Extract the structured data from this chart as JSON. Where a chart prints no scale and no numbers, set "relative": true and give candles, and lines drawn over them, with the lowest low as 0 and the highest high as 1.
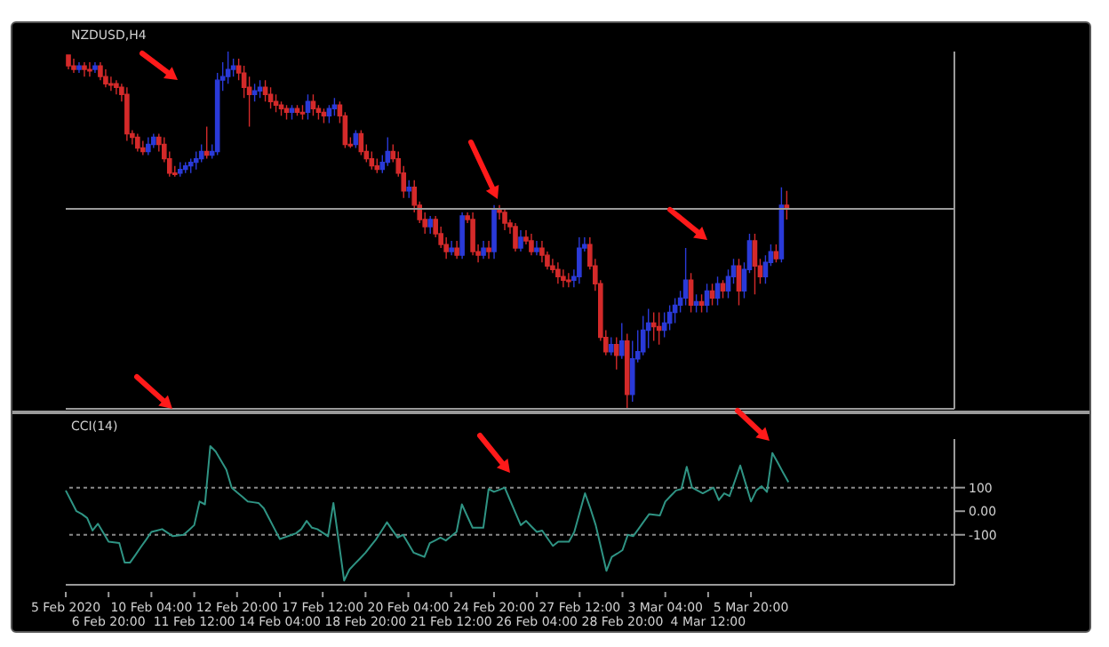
{
  "chart_data": [
    {
      "type": "candlestick",
      "title": "NZDUSD,H4",
      "relative": true,
      "grid": false,
      "categories": [
        null,
        null,
        null,
        null,
        null,
        null,
        null,
        null,
        null,
        null,
        null,
        null,
        null,
        null,
        null,
        null,
        null,
        null,
        null,
        null,
        null,
        null,
        null,
        null,
        null,
        null,
        null,
        null,
        null,
        null,
        null,
        null,
        null,
        null,
        null,
        null,
        null,
        null,
        null,
        null,
        null,
        null,
        null,
        null,
        null,
        null,
        null,
        null,
        null,
        null,
        null,
        null,
        null,
        null,
        null,
        null,
        null,
        null,
        null,
        null,
        null,
        null,
        null,
        null,
        null,
        null,
        null,
        null,
        null,
        null,
        null,
        null,
        null,
        null,
        null,
        null,
        null,
        null,
        null,
        null,
        null,
        null,
        null,
        null,
        null,
        null,
        null,
        null,
        null,
        null,
        null,
        null,
        null,
        null,
        null,
        null,
        null,
        null,
        null,
        null,
        null,
        null,
        null,
        null,
        null,
        null,
        null,
        null,
        null,
        null,
        null,
        null,
        null,
        null,
        null,
        null,
        null,
        null,
        null,
        null,
        null,
        null,
        null,
        null,
        null,
        null,
        null,
        null,
        null,
        null,
        null,
        null,
        null,
        null,
        null,
        null,
        null,
        null,
        null,
        null,
        null,
        null,
        null,
        null,
        null,
        null,
        null,
        null,
        null,
        null,
        null,
        null,
        null,
        null,
        null,
        null,
        null,
        null,
        null,
        null,
        null,
        null,
        null,
        null,
        null,
        null,
        null
      ],
      "ohlc": [
        [
          0.99,
          0.99,
          0.95,
          0.96
        ],
        [
          0.96,
          0.98,
          0.94,
          0.95
        ],
        [
          0.95,
          0.97,
          0.94,
          0.96
        ],
        [
          0.96,
          0.97,
          0.93,
          0.95
        ],
        [
          0.95,
          0.97,
          0.93,
          0.95
        ],
        [
          0.95,
          0.97,
          0.94,
          0.96
        ],
        [
          0.96,
          0.97,
          0.92,
          0.93
        ],
        [
          0.93,
          0.95,
          0.9,
          0.91
        ],
        [
          0.91,
          0.93,
          0.89,
          0.91
        ],
        [
          0.91,
          0.92,
          0.88,
          0.9
        ],
        [
          0.9,
          0.91,
          0.86,
          0.88
        ],
        [
          0.88,
          0.9,
          0.75,
          0.77
        ],
        [
          0.77,
          0.78,
          0.74,
          0.76
        ],
        [
          0.76,
          0.77,
          0.72,
          0.73
        ],
        [
          0.73,
          0.75,
          0.71,
          0.72
        ],
        [
          0.72,
          0.76,
          0.71,
          0.74
        ],
        [
          0.74,
          0.77,
          0.73,
          0.76
        ],
        [
          0.76,
          0.77,
          0.72,
          0.74
        ],
        [
          0.74,
          0.76,
          0.69,
          0.7
        ],
        [
          0.7,
          0.72,
          0.65,
          0.66
        ],
        [
          0.66,
          0.68,
          0.65,
          0.66
        ],
        [
          0.66,
          0.69,
          0.65,
          0.67
        ],
        [
          0.67,
          0.69,
          0.66,
          0.68
        ],
        [
          0.68,
          0.7,
          0.66,
          0.69
        ],
        [
          0.69,
          0.72,
          0.67,
          0.7
        ],
        [
          0.7,
          0.74,
          0.69,
          0.72
        ],
        [
          0.72,
          0.79,
          0.7,
          0.71
        ],
        [
          0.71,
          0.74,
          0.7,
          0.72
        ],
        [
          0.72,
          0.94,
          0.71,
          0.92
        ],
        [
          0.92,
          0.97,
          0.89,
          0.93
        ],
        [
          0.93,
          1.0,
          0.91,
          0.95
        ],
        [
          0.95,
          0.98,
          0.93,
          0.96
        ],
        [
          0.96,
          0.98,
          0.92,
          0.94
        ],
        [
          0.94,
          0.96,
          0.87,
          0.9
        ],
        [
          0.9,
          0.93,
          0.79,
          0.88
        ],
        [
          0.88,
          0.91,
          0.86,
          0.89
        ],
        [
          0.89,
          0.92,
          0.87,
          0.9
        ],
        [
          0.9,
          0.92,
          0.86,
          0.88
        ],
        [
          0.88,
          0.9,
          0.84,
          0.86
        ],
        [
          0.86,
          0.88,
          0.83,
          0.85
        ],
        [
          0.85,
          0.86,
          0.82,
          0.84
        ],
        [
          0.84,
          0.85,
          0.81,
          0.83
        ],
        [
          0.83,
          0.85,
          0.81,
          0.84
        ],
        [
          0.84,
          0.85,
          0.82,
          0.83
        ],
        [
          0.83,
          0.85,
          0.81,
          0.83
        ],
        [
          0.83,
          0.88,
          0.81,
          0.86
        ],
        [
          0.86,
          0.88,
          0.82,
          0.84
        ],
        [
          0.84,
          0.85,
          0.81,
          0.83
        ],
        [
          0.83,
          0.84,
          0.8,
          0.82
        ],
        [
          0.82,
          0.85,
          0.8,
          0.84
        ],
        [
          0.84,
          0.87,
          0.82,
          0.85
        ],
        [
          0.85,
          0.86,
          0.8,
          0.82
        ],
        [
          0.82,
          0.83,
          0.73,
          0.74
        ],
        [
          0.74,
          0.76,
          0.73,
          0.74
        ],
        [
          0.74,
          0.78,
          0.73,
          0.77
        ],
        [
          0.77,
          0.78,
          0.71,
          0.72
        ],
        [
          0.72,
          0.74,
          0.69,
          0.7
        ],
        [
          0.7,
          0.72,
          0.67,
          0.68
        ],
        [
          0.68,
          0.7,
          0.66,
          0.67
        ],
        [
          0.67,
          0.71,
          0.66,
          0.69
        ],
        [
          0.69,
          0.76,
          0.68,
          0.72
        ],
        [
          0.72,
          0.74,
          0.69,
          0.7
        ],
        [
          0.7,
          0.72,
          0.65,
          0.66
        ],
        [
          0.66,
          0.68,
          0.59,
          0.61
        ],
        [
          0.61,
          0.64,
          0.59,
          0.62
        ],
        [
          0.62,
          0.64,
          0.55,
          0.57
        ],
        [
          0.57,
          0.58,
          0.52,
          0.53
        ],
        [
          0.53,
          0.55,
          0.49,
          0.51
        ],
        [
          0.51,
          0.54,
          0.49,
          0.53
        ],
        [
          0.53,
          0.54,
          0.48,
          0.49
        ],
        [
          0.49,
          0.51,
          0.45,
          0.46
        ],
        [
          0.46,
          0.48,
          0.42,
          0.44
        ],
        [
          0.44,
          0.47,
          0.43,
          0.45
        ],
        [
          0.45,
          0.47,
          0.42,
          0.43
        ],
        [
          0.43,
          0.55,
          0.42,
          0.54
        ],
        [
          0.54,
          0.55,
          0.52,
          0.53
        ],
        [
          0.53,
          0.55,
          0.43,
          0.44
        ],
        [
          0.44,
          0.46,
          0.41,
          0.43
        ],
        [
          0.43,
          0.47,
          0.42,
          0.45
        ],
        [
          0.45,
          0.47,
          0.42,
          0.44
        ],
        [
          0.44,
          0.57,
          0.42,
          0.56
        ],
        [
          0.56,
          0.57,
          0.53,
          0.55
        ],
        [
          0.55,
          0.56,
          0.5,
          0.52
        ],
        [
          0.52,
          0.53,
          0.49,
          0.51
        ],
        [
          0.51,
          0.52,
          0.44,
          0.45
        ],
        [
          0.45,
          0.5,
          0.44,
          0.48
        ],
        [
          0.48,
          0.5,
          0.46,
          0.47
        ],
        [
          0.47,
          0.49,
          0.43,
          0.44
        ],
        [
          0.44,
          0.47,
          0.43,
          0.45
        ],
        [
          0.45,
          0.47,
          0.41,
          0.43
        ],
        [
          0.43,
          0.44,
          0.39,
          0.4
        ],
        [
          0.4,
          0.42,
          0.38,
          0.39
        ],
        [
          0.39,
          0.41,
          0.35,
          0.37
        ],
        [
          0.37,
          0.39,
          0.34,
          0.36
        ],
        [
          0.36,
          0.38,
          0.34,
          0.36
        ],
        [
          0.36,
          0.39,
          0.34,
          0.37
        ],
        [
          0.37,
          0.48,
          0.35,
          0.45
        ],
        [
          0.45,
          0.48,
          0.44,
          0.46
        ],
        [
          0.46,
          0.48,
          0.39,
          0.4
        ],
        [
          0.4,
          0.42,
          0.33,
          0.35
        ],
        [
          0.35,
          0.36,
          0.19,
          0.2
        ],
        [
          0.2,
          0.22,
          0.15,
          0.16
        ],
        [
          0.16,
          0.2,
          0.15,
          0.18
        ],
        [
          0.18,
          0.2,
          0.11,
          0.15
        ],
        [
          0.15,
          0.24,
          0.14,
          0.19
        ],
        [
          0.19,
          0.21,
          0.0,
          0.04
        ],
        [
          0.04,
          0.19,
          0.02,
          0.14
        ],
        [
          0.14,
          0.22,
          0.13,
          0.16
        ],
        [
          0.16,
          0.26,
          0.15,
          0.22
        ],
        [
          0.22,
          0.28,
          0.17,
          0.24
        ],
        [
          0.24,
          0.27,
          0.19,
          0.23
        ],
        [
          0.23,
          0.27,
          0.18,
          0.22
        ],
        [
          0.22,
          0.27,
          0.2,
          0.24
        ],
        [
          0.24,
          0.29,
          0.22,
          0.27
        ],
        [
          0.27,
          0.31,
          0.24,
          0.29
        ],
        [
          0.29,
          0.33,
          0.27,
          0.31
        ],
        [
          0.31,
          0.45,
          0.29,
          0.36
        ],
        [
          0.36,
          0.38,
          0.27,
          0.29
        ],
        [
          0.29,
          0.32,
          0.27,
          0.3
        ],
        [
          0.3,
          0.32,
          0.27,
          0.29
        ],
        [
          0.29,
          0.35,
          0.27,
          0.33
        ],
        [
          0.33,
          0.35,
          0.29,
          0.31
        ],
        [
          0.31,
          0.37,
          0.29,
          0.35
        ],
        [
          0.35,
          0.36,
          0.31,
          0.33
        ],
        [
          0.33,
          0.39,
          0.31,
          0.37
        ],
        [
          0.37,
          0.42,
          0.35,
          0.4
        ],
        [
          0.4,
          0.42,
          0.29,
          0.33
        ],
        [
          0.33,
          0.41,
          0.31,
          0.39
        ],
        [
          0.39,
          0.49,
          0.38,
          0.47
        ],
        [
          0.47,
          0.49,
          0.32,
          0.4
        ],
        [
          0.4,
          0.42,
          0.35,
          0.37
        ],
        [
          0.37,
          0.43,
          0.35,
          0.41
        ],
        [
          0.41,
          0.46,
          0.4,
          0.44
        ],
        [
          0.44,
          0.46,
          0.41,
          0.42
        ],
        [
          0.42,
          0.62,
          0.41,
          0.57
        ],
        [
          0.57,
          0.61,
          0.53,
          0.56
        ],
        null,
        null,
        null,
        null,
        null,
        null,
        null,
        null,
        null,
        null,
        null,
        null,
        null,
        null,
        null,
        null,
        null,
        null,
        null,
        null,
        null,
        null,
        null,
        null,
        null,
        null,
        null,
        null,
        null,
        null,
        null
      ],
      "colors": [
        "#d42a2a",
        "#d42a2a",
        "#2a3ad8",
        "#d42a2a",
        "#d42a2a",
        "#2a3ad8",
        "#d42a2a",
        "#d42a2a",
        "#d42a2a",
        "#d42a2a",
        "#d42a2a",
        "#d42a2a",
        "#d42a2a",
        "#d42a2a",
        "#d42a2a",
        "#2a3ad8",
        "#2a3ad8",
        "#d42a2a",
        "#d42a2a",
        "#d42a2a",
        "#d42a2a",
        "#2a3ad8",
        "#2a3ad8",
        "#2a3ad8",
        "#2a3ad8",
        "#2a3ad8",
        "#d42a2a",
        "#2a3ad8",
        "#2a3ad8",
        "#2a3ad8",
        "#2a3ad8",
        "#2a3ad8",
        "#d42a2a",
        "#d42a2a",
        "#d42a2a",
        "#2a3ad8",
        "#2a3ad8",
        "#d42a2a",
        "#d42a2a",
        "#d42a2a",
        "#d42a2a",
        "#d42a2a",
        "#2a3ad8",
        "#d42a2a",
        "#d42a2a",
        "#2a3ad8",
        "#d42a2a",
        "#d42a2a",
        "#d42a2a",
        "#2a3ad8",
        "#2a3ad8",
        "#d42a2a",
        "#d42a2a",
        "#d42a2a",
        "#2a3ad8",
        "#d42a2a",
        "#d42a2a",
        "#d42a2a",
        "#d42a2a",
        "#2a3ad8",
        "#2a3ad8",
        "#d42a2a",
        "#d42a2a",
        "#d42a2a",
        "#2a3ad8",
        "#d42a2a",
        "#d42a2a",
        "#d42a2a",
        "#2a3ad8",
        "#d42a2a",
        "#d42a2a",
        "#d42a2a",
        "#2a3ad8",
        "#d42a2a",
        "#2a3ad8",
        "#d42a2a",
        "#d42a2a",
        "#d42a2a",
        "#2a3ad8",
        "#d42a2a",
        "#2a3ad8",
        "#d42a2a",
        "#d42a2a",
        "#d42a2a",
        "#d42a2a",
        "#2a3ad8",
        "#d42a2a",
        "#d42a2a",
        "#2a3ad8",
        "#d42a2a",
        "#d42a2a",
        "#d42a2a",
        "#d42a2a",
        "#d42a2a",
        "#d42a2a",
        "#2a3ad8",
        "#2a3ad8",
        "#2a3ad8",
        "#d42a2a",
        "#d42a2a",
        "#d42a2a",
        "#d42a2a",
        "#2a3ad8",
        "#d42a2a",
        "#2a3ad8",
        "#d42a2a",
        "#2a3ad8",
        "#2a3ad8",
        "#2a3ad8",
        "#2a3ad8",
        "#d42a2a",
        "#d42a2a",
        "#2a3ad8",
        "#2a3ad8",
        "#2a3ad8",
        "#2a3ad8",
        "#2a3ad8",
        "#d42a2a",
        "#2a3ad8",
        "#d42a2a",
        "#2a3ad8",
        "#d42a2a",
        "#2a3ad8",
        "#d42a2a",
        "#2a3ad8",
        "#2a3ad8",
        "#d42a2a",
        "#2a3ad8",
        "#2a3ad8",
        "#d42a2a",
        "#d42a2a",
        "#2a3ad8",
        "#2a3ad8",
        "#d42a2a",
        "#2a3ad8",
        "#d42a2a",
        null,
        null,
        null,
        null,
        null,
        null,
        null,
        null,
        null,
        null,
        null,
        null,
        null,
        null,
        null,
        null,
        null,
        null,
        null,
        null,
        null,
        null,
        null,
        null,
        null,
        null,
        null,
        null,
        null,
        null,
        null
      ],
      "ref_lines": [
        {
          "axis": "y",
          "value": 0.56,
          "color": "#9a9a9a"
        }
      ]
    },
    {
      "type": "line",
      "title": "CCI(14)",
      "grid": false,
      "marker": "none",
      "line_style": "solid",
      "categories": [
        "5 Feb 2020",
        null,
        null,
        null,
        null,
        null,
        null,
        null,
        "6 Feb 20:00",
        null,
        null,
        null,
        null,
        null,
        null,
        null,
        "10 Feb 04:00",
        null,
        null,
        null,
        null,
        null,
        null,
        null,
        "11 Feb 12:00",
        null,
        null,
        null,
        null,
        null,
        null,
        null,
        "12 Feb 20:00",
        null,
        null,
        null,
        null,
        null,
        null,
        null,
        "14 Feb 04:00",
        null,
        null,
        null,
        null,
        null,
        null,
        null,
        "17 Feb 12:00",
        null,
        null,
        null,
        null,
        null,
        null,
        null,
        "18 Feb 20:00",
        null,
        null,
        null,
        null,
        null,
        null,
        null,
        "20 Feb 04:00",
        null,
        null,
        null,
        null,
        null,
        null,
        null,
        "21 Feb 12:00",
        null,
        null,
        null,
        null,
        null,
        null,
        null,
        "24 Feb 20:00",
        null,
        null,
        null,
        null,
        null,
        null,
        null,
        "26 Feb 04:00",
        null,
        null,
        null,
        null,
        null,
        null,
        null,
        "27 Feb 12:00",
        null,
        null,
        null,
        null,
        null,
        null,
        null,
        "28 Feb 20:00",
        null,
        null,
        null,
        null,
        null,
        null,
        null,
        "3 Mar 04:00",
        null,
        null,
        null,
        null,
        null,
        null,
        null,
        "4 Mar 12:00",
        null,
        null,
        null,
        null,
        null,
        null,
        null,
        "5 Mar 20:00",
        null,
        null,
        null,
        null,
        null,
        null,
        null,
        null,
        null,
        null,
        null,
        null,
        null,
        null,
        null,
        null,
        null,
        null,
        null,
        null,
        null,
        null,
        null,
        null,
        null,
        null,
        null,
        null,
        null,
        null,
        null,
        null,
        null,
        null,
        null,
        null,
        null,
        null
      ],
      "ylim": [
        -312,
        306
      ],
      "yticks": [
        100,
        {
          "value": 0,
          "label": "0.00"
        },
        -100
      ],
      "series": [
        {
          "color": "#2f9484",
          "values": [
            88,
            44,
            0,
            -12,
            -29,
            -82,
            -53,
            -91,
            -129,
            -132,
            -135,
            -218,
            -218,
            -186,
            -153,
            -121,
            -88,
            -82,
            -76,
            -91,
            -106,
            -103,
            -100,
            -80,
            -59,
            41,
            29,
            276,
            253,
            215,
            176,
            100,
            80,
            61,
            41,
            38,
            35,
            12,
            -31,
            -75,
            -118,
            -110,
            -102,
            -94,
            -76,
            -41,
            -70,
            -76,
            -91,
            -106,
            35,
            -130,
            -294,
            -247,
            -223,
            -200,
            -176,
            -147,
            -118,
            -83,
            -47,
            -80,
            -112,
            -100,
            -138,
            -176,
            -185,
            -194,
            -135,
            -124,
            -112,
            -124,
            -106,
            -88,
            29,
            -21,
            -70,
            -70,
            -70,
            94,
            82,
            91,
            100,
            47,
            -6,
            -59,
            -41,
            -65,
            -88,
            -82,
            -115,
            -147,
            -129,
            -129,
            -129,
            -88,
            -6,
            76,
            12,
            -59,
            -156,
            -253,
            -194,
            -180,
            -165,
            -100,
            -106,
            -75,
            -43,
            -12,
            -15,
            -18,
            41,
            65,
            88,
            94,
            188,
            100,
            88,
            76,
            88,
            100,
            47,
            76,
            64,
            129,
            194,
            118,
            41,
            88,
            106,
            82,
            247,
            206,
            164,
            123,
            null,
            null,
            null,
            null,
            null,
            null,
            null,
            null,
            null,
            null,
            null,
            null,
            null,
            null,
            null,
            null,
            null,
            null,
            null,
            null,
            null,
            null,
            null,
            null,
            null,
            null,
            null,
            null,
            null,
            null,
            null
          ]
        }
      ],
      "ref_lines": [
        {
          "axis": "y",
          "value": 100,
          "line_style": "dotted",
          "color": "#8a8a8a"
        },
        {
          "axis": "y",
          "value": -100,
          "line_style": "dotted",
          "color": "#8a8a8a"
        }
      ]
    }
  ]
}
